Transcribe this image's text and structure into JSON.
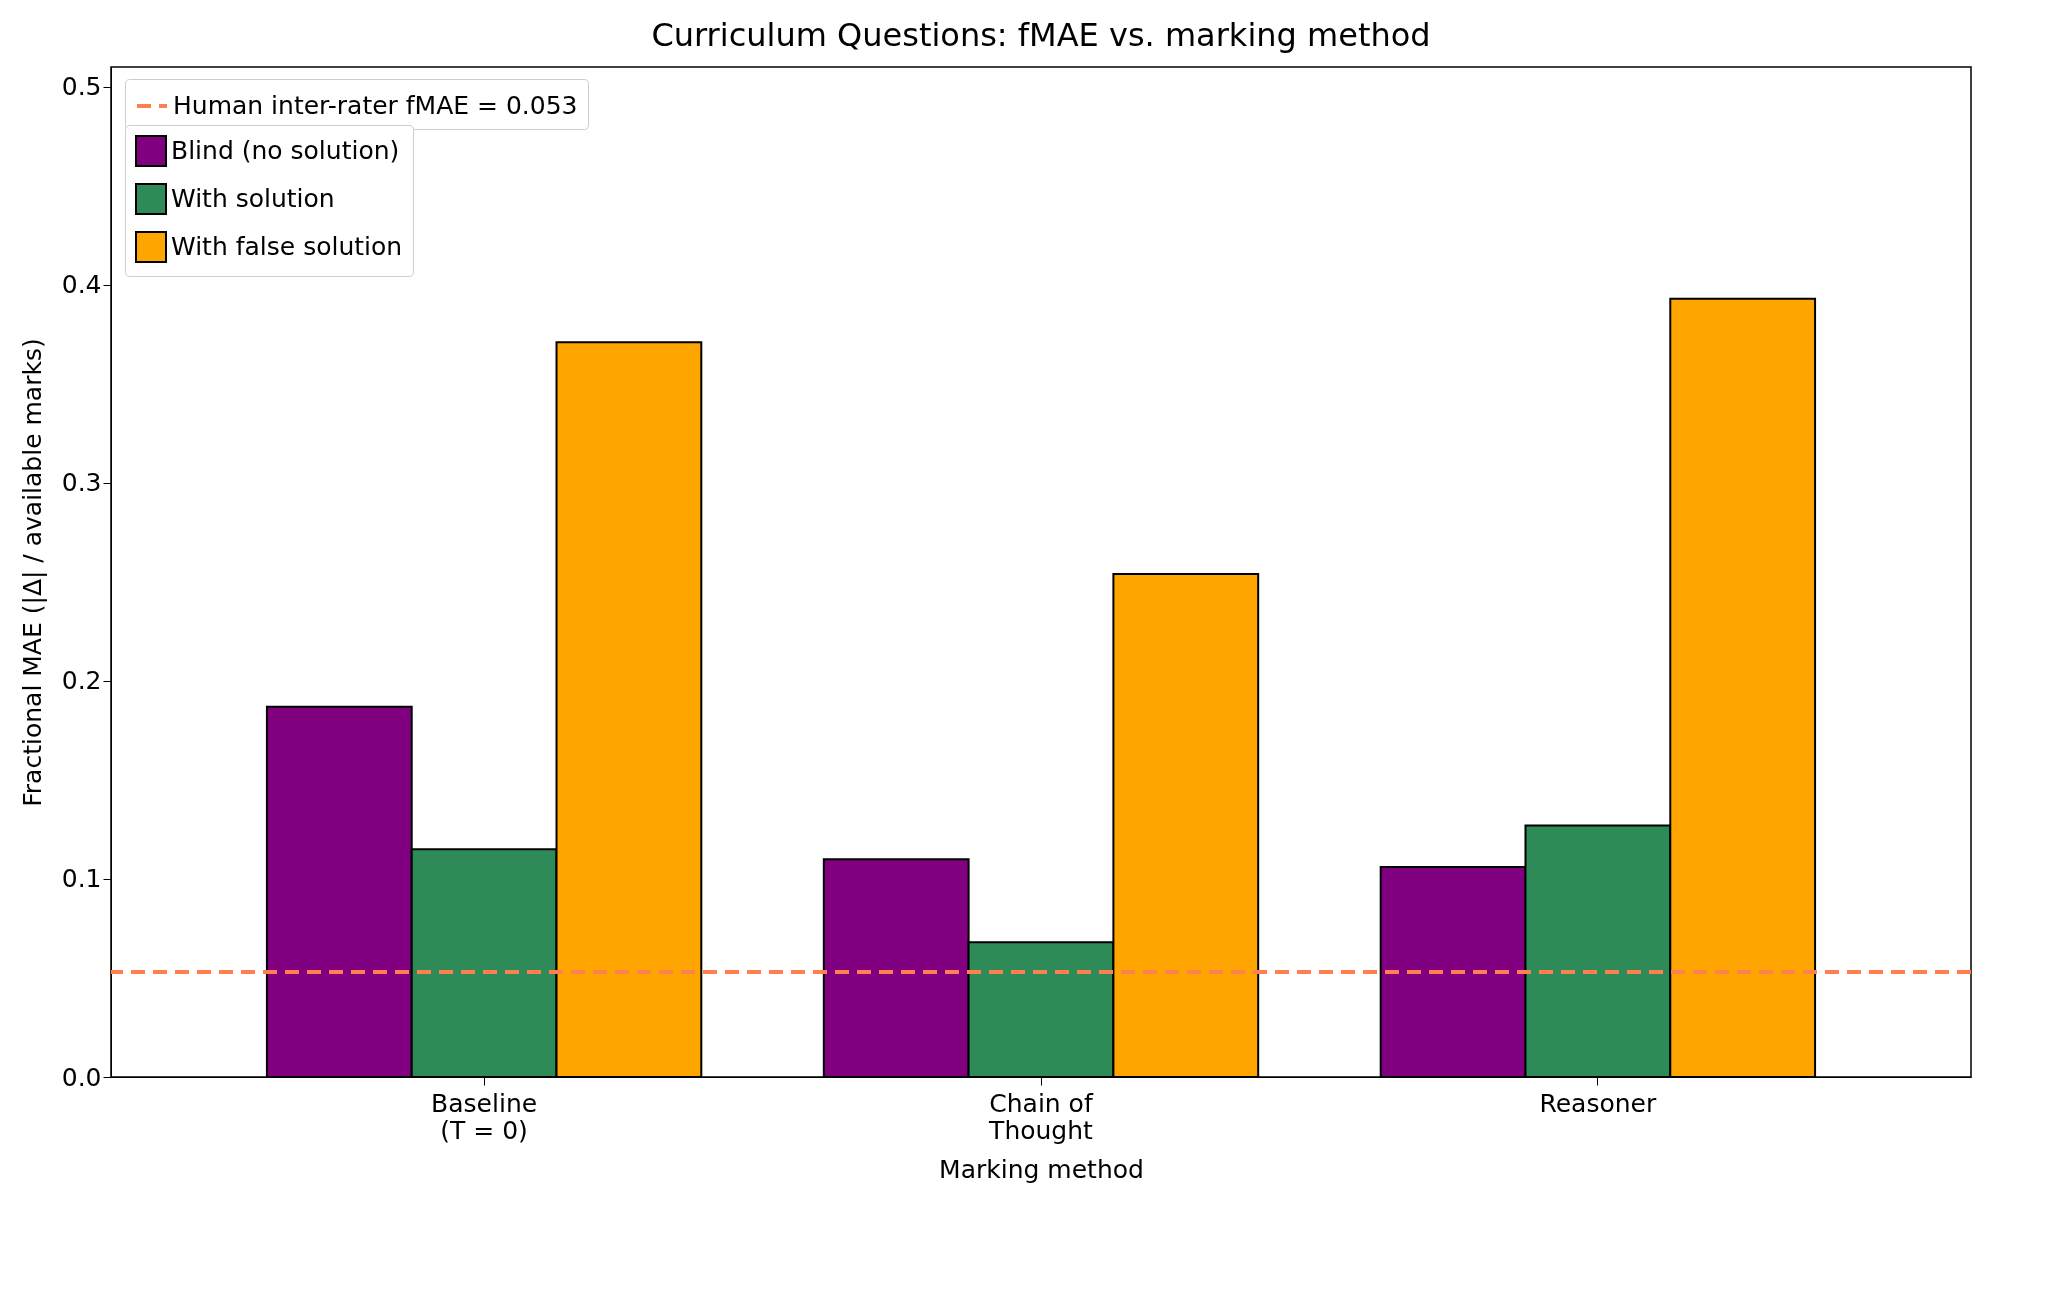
{
  "chart_data": {
    "type": "bar",
    "title": "Curriculum Questions: fMAE vs. marking method",
    "xlabel": "Marking method",
    "ylabel": "Fractional MAE (|Δ| / available marks)",
    "categories": [
      "Baseline\n(T = 0)",
      "Chain of\nThought",
      "Reasoner"
    ],
    "series": [
      {
        "name": "Blind (no solution)",
        "color": "#800080",
        "values": [
          0.187,
          0.11,
          0.106
        ]
      },
      {
        "name": "With solution",
        "color": "#2e8b57",
        "values": [
          0.115,
          0.068,
          0.127
        ]
      },
      {
        "name": "With false solution",
        "color": "#ffa500",
        "values": [
          0.371,
          0.254,
          0.393
        ]
      }
    ],
    "ylim": [
      0,
      0.51
    ],
    "yticks": [
      {
        "value": 0,
        "label": "0.0"
      },
      0.1,
      0.2,
      0.3,
      0.4,
      0.5
    ],
    "ref_lines": [
      {
        "axis": "y",
        "value": 0.053,
        "label": "Human inter-rater fMAE = 0.053",
        "color": "#ff7f50",
        "line_style": "dashed"
      }
    ],
    "grid": false,
    "legend": "top left"
  }
}
